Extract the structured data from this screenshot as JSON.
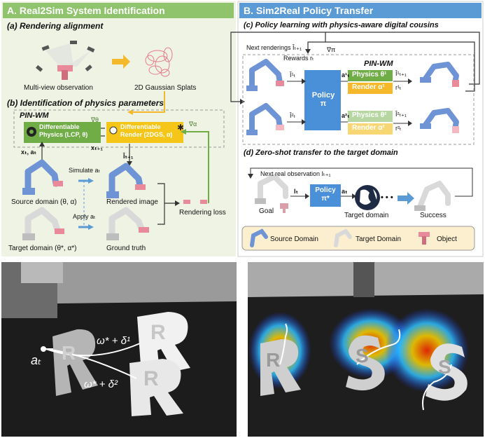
{
  "panel_a": {
    "header": "A. Real2Sim System Identification",
    "a_title": "(a) Rendering alignment",
    "multiview": "Multi-view observation",
    "gaussian": "2D Gaussian Splats",
    "b_title": "(b) Identification of physics parameters",
    "pinwm": "PIN-WM",
    "diff_physics_1": "Differentiable",
    "diff_physics_2": "Physics (LCP, θ)",
    "diff_render_1": "Differentiable",
    "diff_render_2": "Render (2DGS, α)",
    "grad_theta": "∇θ",
    "grad_alpha": "∇α",
    "xt_at": "xₜ, aₜ",
    "xt1": "xₜ₊₁",
    "it1": "Îₜ₊₁",
    "simulate": "Simulate aₜ",
    "apply": "Apply aₜ",
    "source_domain": "Source domain (θ, α)",
    "target_domain": "Target domain (θ*, α*)",
    "rendered_image": "Rendered image",
    "ground_truth": "Ground truth",
    "rendering_loss": "Rendering loss"
  },
  "panel_b": {
    "header": "B. Sim2Real Policy Transfer",
    "c_title": "(c) Policy learning with physics-aware digital cousins",
    "next_renderings": "Next renderings Îₜ₊₁",
    "rewards": "Rewards rₜ",
    "grad_pi": "∇π",
    "pinwm": "PIN-WM",
    "policy": "Policy",
    "pi": "π",
    "i1": "Î¹ₜ",
    "i2": "Î²ₜ",
    "a1": "a¹ₜ",
    "a2": "a²ₜ",
    "physics1": "Physics θ¹",
    "render1": "Render α¹",
    "physics2": "Physics θ²",
    "render2": "Render α²",
    "out1a": "Î¹ₜ₊₁",
    "out1b": "r¹ₜ",
    "out2a": "Î²ₜ₊₁",
    "out2b": "r²ₜ",
    "d_title": "(d) Zero-shot transfer to the target domain",
    "next_real": "Next real observation Iₜ₊₁",
    "goal": "Goal",
    "it": "Iₜ",
    "policy_star": "Policy",
    "pi_star": "π*",
    "at": "aₜ",
    "target_domain": "Target domain",
    "ellipsis": "• • •",
    "success": "Success",
    "legend_source": "Source Domain",
    "legend_target": "Target Domain",
    "legend_object": "Object"
  },
  "photo_left": {
    "letter1": "R",
    "letter2": "R",
    "letter3": "R",
    "at": "aₜ",
    "eq1": "ω* + δ¹",
    "eq2": "ω* + δ²"
  },
  "photo_right": {
    "letter1": "R",
    "letter2": "S",
    "letter3": "S"
  },
  "colors": {
    "green_header": "#8fc46d",
    "blue_header": "#5b9bd5",
    "panel_a_bg": "#eef3e4",
    "physics_green": "#70ad47",
    "render_yellow": "#f5c518",
    "policy_blue": "#4a90d9",
    "robot_blue": "#6f94d6",
    "object_pink": "#e88a9a",
    "legend_bg": "#fbefcf"
  }
}
